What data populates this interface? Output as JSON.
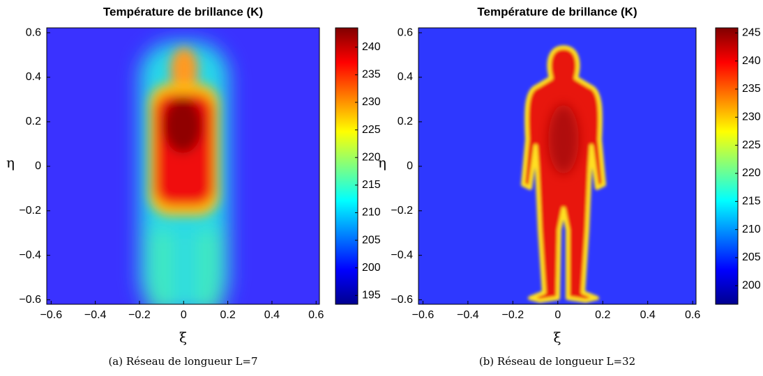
{
  "chart_data": [
    {
      "type": "heatmap",
      "title": "Température de brillance (K)",
      "xlabel": "ξ",
      "ylabel": "η",
      "caption": "(a)  Réseau de longueur L=7",
      "colormap": "jet",
      "xlim": [
        -0.62,
        0.615
      ],
      "ylim": [
        -0.62,
        0.622
      ],
      "xticks": [
        {
          "value": -0.6,
          "label": "−0.6"
        },
        {
          "value": -0.4,
          "label": "−0.4"
        },
        {
          "value": -0.2,
          "label": "−0.2"
        },
        0,
        0.2,
        0.4,
        0.6
      ],
      "yticks": [
        {
          "value": -0.6,
          "label": "−0.6"
        },
        {
          "value": -0.4,
          "label": "−0.4"
        },
        {
          "value": -0.2,
          "label": "−0.2"
        },
        0,
        0.2,
        0.4,
        0.6
      ],
      "clim": [
        193.4,
        243.5
      ],
      "cticks": [
        195,
        200,
        205,
        210,
        215,
        220,
        225,
        230,
        235,
        240
      ]
    },
    {
      "type": "heatmap",
      "title": "Température de brillance (K)",
      "xlabel": "ξ",
      "ylabel": "η",
      "caption": "(b)  Réseau de longueur L=32",
      "colormap": "jet",
      "xlim": [
        -0.62,
        0.615
      ],
      "ylim": [
        -0.62,
        0.622
      ],
      "xticks": [
        {
          "value": -0.6,
          "label": "−0.6"
        },
        {
          "value": -0.4,
          "label": "−0.4"
        },
        {
          "value": -0.2,
          "label": "−0.2"
        },
        0,
        0.2,
        0.4,
        0.6
      ],
      "yticks": [
        {
          "value": -0.6,
          "label": "−0.6"
        },
        {
          "value": -0.4,
          "label": "−0.4"
        },
        {
          "value": -0.2,
          "label": "−0.2"
        },
        0,
        0.2,
        0.4,
        0.6
      ],
      "clim": [
        196.7,
        245.9
      ],
      "cticks": [
        200,
        205,
        210,
        215,
        220,
        225,
        230,
        235,
        240,
        245
      ]
    }
  ]
}
